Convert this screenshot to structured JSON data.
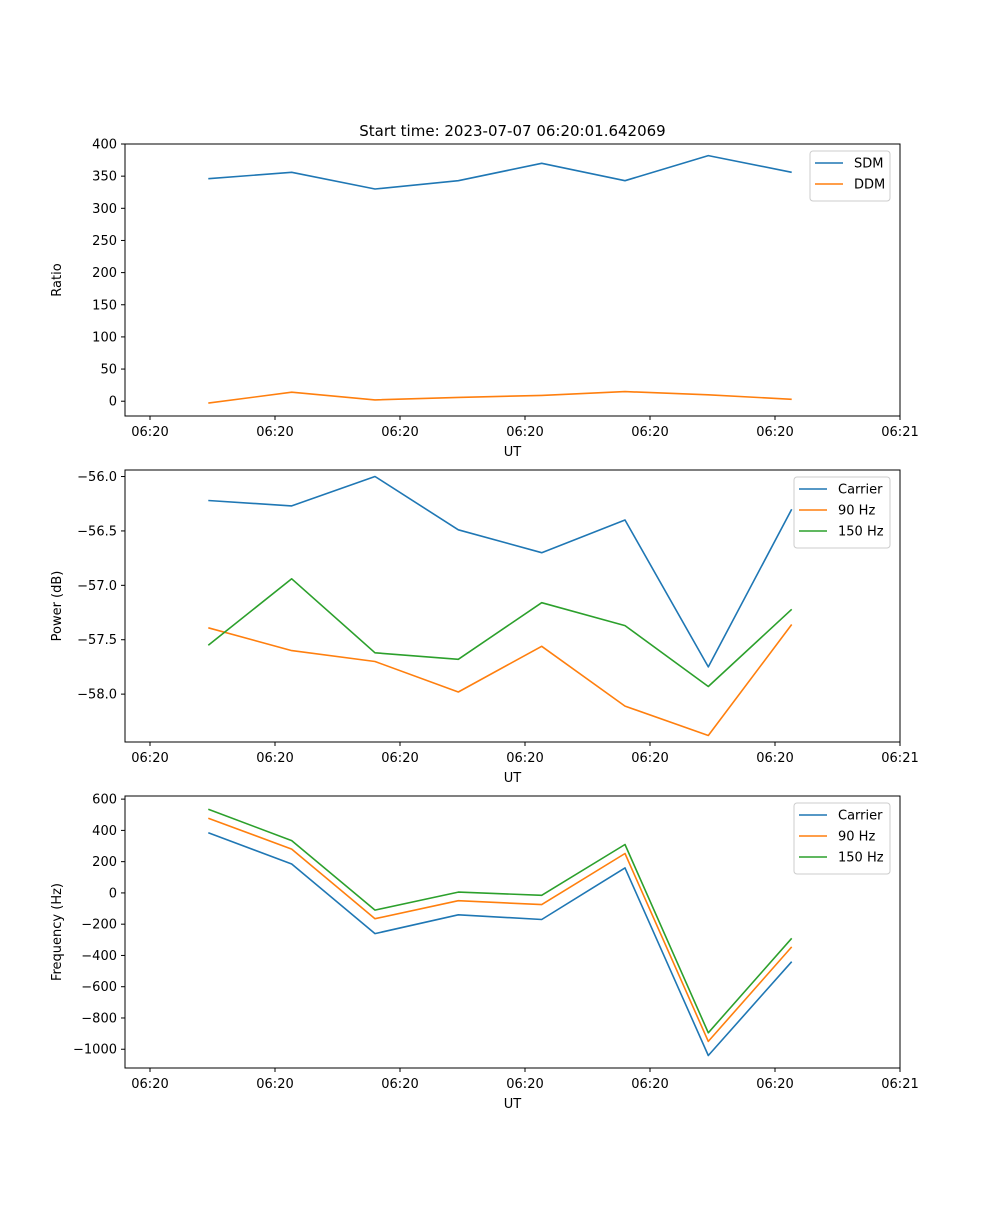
{
  "chart_data": [
    {
      "type": "line",
      "title": "Start time: 2023-07-07 06:20:01.642069",
      "xlabel": "UT",
      "ylabel": "Ratio",
      "xlim": [
        -0.3,
        9
      ],
      "ylim": [
        -23,
        400
      ],
      "yticks": [
        0,
        50,
        100,
        150,
        200,
        250,
        300,
        350,
        400
      ],
      "xtick_positions": [
        0,
        1.5,
        3,
        4.5,
        6,
        7.5,
        9
      ],
      "xtick_labels": [
        "06:20",
        "06:20",
        "06:20",
        "06:20",
        "06:20",
        "06:20",
        "06:21"
      ],
      "x": [
        0.7,
        1.7,
        2.7,
        3.7,
        4.7,
        5.7,
        6.7,
        7.7
      ],
      "legend": "top-right",
      "series": [
        {
          "name": "SDM",
          "color": "#1f77b4",
          "values": [
            346,
            356,
            330,
            343,
            370,
            343,
            382,
            356
          ]
        },
        {
          "name": "DDM",
          "color": "#ff7f0e",
          "values": [
            -3,
            14,
            2,
            6,
            9,
            15,
            10,
            3
          ]
        }
      ]
    },
    {
      "type": "line",
      "title": "",
      "xlabel": "UT",
      "ylabel": "Power (dB)",
      "xlim": [
        -0.3,
        9
      ],
      "ylim": [
        -58.44,
        -55.94
      ],
      "yticks": [
        -56.0,
        -56.5,
        -57.0,
        -57.5,
        -58.0
      ],
      "ytick_labels": [
        "−56.0",
        "−56.5",
        "−57.0",
        "−57.5",
        "−58.0"
      ],
      "xtick_positions": [
        0,
        1.5,
        3,
        4.5,
        6,
        7.5,
        9
      ],
      "xtick_labels": [
        "06:20",
        "06:20",
        "06:20",
        "06:20",
        "06:20",
        "06:20",
        "06:21"
      ],
      "x": [
        0.7,
        1.7,
        2.7,
        3.7,
        4.7,
        5.7,
        6.7,
        7.7
      ],
      "legend": "top-right",
      "series": [
        {
          "name": "Carrier",
          "color": "#1f77b4",
          "values": [
            -56.22,
            -56.27,
            -56.0,
            -56.49,
            -56.7,
            -56.4,
            -57.75,
            -56.3
          ]
        },
        {
          "name": "90 Hz",
          "color": "#ff7f0e",
          "values": [
            -57.39,
            -57.6,
            -57.7,
            -57.98,
            -57.56,
            -58.11,
            -58.38,
            -57.36
          ]
        },
        {
          "name": "150 Hz",
          "color": "#2ca02c",
          "values": [
            -57.55,
            -56.94,
            -57.62,
            -57.68,
            -57.16,
            -57.37,
            -57.93,
            -57.22
          ]
        }
      ]
    },
    {
      "type": "line",
      "title": "",
      "xlabel": "UT",
      "ylabel": "Frequency (Hz)",
      "xlim": [
        -0.3,
        9
      ],
      "ylim": [
        -1120,
        620
      ],
      "yticks": [
        600,
        400,
        200,
        0,
        -200,
        -400,
        -600,
        -800,
        -1000
      ],
      "ytick_labels": [
        "600",
        "400",
        "200",
        "0",
        "−200",
        "−400",
        "−600",
        "−800",
        "−1000"
      ],
      "xtick_positions": [
        0,
        1.5,
        3,
        4.5,
        6,
        7.5,
        9
      ],
      "xtick_labels": [
        "06:20",
        "06:20",
        "06:20",
        "06:20",
        "06:20",
        "06:20",
        "06:21"
      ],
      "x": [
        0.7,
        1.7,
        2.7,
        3.7,
        4.7,
        5.7,
        6.7,
        7.7
      ],
      "legend": "top-right",
      "series": [
        {
          "name": "Carrier",
          "color": "#1f77b4",
          "values": [
            385,
            185,
            -260,
            -140,
            -170,
            160,
            -1040,
            -440
          ]
        },
        {
          "name": "90 Hz",
          "color": "#ff7f0e",
          "values": [
            478,
            280,
            -165,
            -50,
            -75,
            252,
            -950,
            -345
          ]
        },
        {
          "name": "150 Hz",
          "color": "#2ca02c",
          "values": [
            535,
            335,
            -110,
            5,
            -15,
            310,
            -895,
            -290
          ]
        }
      ]
    }
  ]
}
